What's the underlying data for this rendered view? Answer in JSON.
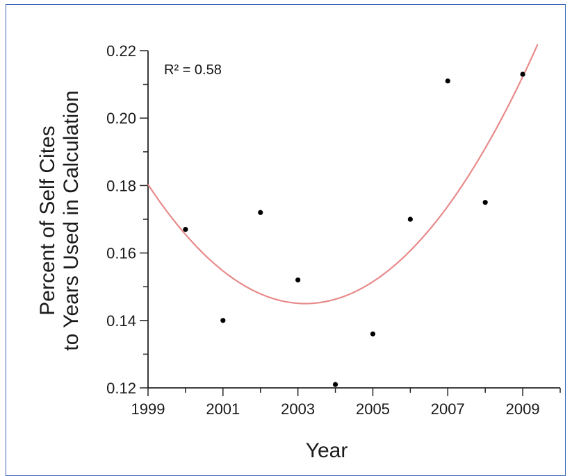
{
  "chart_data": {
    "type": "scatter",
    "title": "",
    "xlabel": "Year",
    "ylabel_line1": "Percent of Self Cites",
    "ylabel_line2": "to Years Used in Calculation",
    "xlim": [
      1999,
      2010
    ],
    "ylim": [
      0.12,
      0.22
    ],
    "x_ticks": [
      1999,
      2001,
      2003,
      2005,
      2007,
      2009
    ],
    "x_tick_labels": [
      "1999",
      "2001",
      "2003",
      "2005",
      "2007",
      "2009"
    ],
    "y_ticks": [
      0.12,
      0.14,
      0.16,
      0.18,
      0.2,
      0.22
    ],
    "y_tick_labels": [
      "0.12",
      "0.14",
      "0.16",
      "0.18",
      "0.20",
      "0.22"
    ],
    "series": [
      {
        "x": [
          2000,
          2001,
          2002,
          2003,
          2004,
          2005,
          2006,
          2007,
          2008,
          2009
        ],
        "y": [
          0.167,
          0.14,
          0.172,
          0.152,
          0.121,
          0.136,
          0.17,
          0.211,
          0.175,
          0.213
        ]
      }
    ],
    "fit": {
      "type": "quadratic",
      "vertex_x": 2003.2,
      "vertex_y": 0.145,
      "a": 0.002,
      "x_range": [
        1999,
        2009.4
      ],
      "color": "#e88a8a"
    },
    "annotation": "R² = 0.58",
    "point_color": "#000000",
    "grid": false
  }
}
